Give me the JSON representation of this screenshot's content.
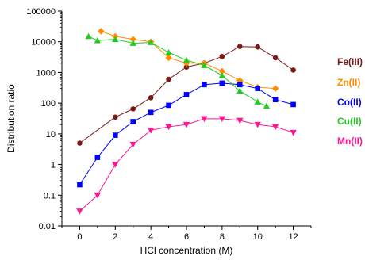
{
  "chart_data": {
    "type": "line",
    "title": "",
    "xlabel": "HCl concentration (M)",
    "ylabel": "Distribution ratio",
    "xlim": [
      -1,
      13
    ],
    "ylim": [
      0.01,
      100000
    ],
    "yscale": "log",
    "xticks": [
      0,
      2,
      4,
      6,
      8,
      10,
      12
    ],
    "yticks": [
      0.01,
      0.1,
      1,
      10,
      100,
      1000,
      10000,
      100000
    ],
    "ytick_labels": [
      "0.01",
      "0.1",
      "1",
      "10",
      "100",
      "1000",
      "10000",
      "100000"
    ],
    "grid": false,
    "legend": "right, beside series ends",
    "series": [
      {
        "name": "Fe(III)",
        "color": "#7b1a14",
        "marker": "circle",
        "points": [
          [
            0,
            5
          ],
          [
            2,
            35
          ],
          [
            3,
            65
          ],
          [
            4,
            150
          ],
          [
            5,
            600
          ],
          [
            6,
            1500
          ],
          [
            7,
            2000
          ],
          [
            8,
            3300
          ],
          [
            9,
            7000
          ],
          [
            10,
            6800
          ],
          [
            11,
            3000
          ],
          [
            12,
            1200
          ]
        ]
      },
      {
        "name": "Zn(II)",
        "color": "#ff8c00",
        "marker": "diamond",
        "points": [
          [
            1.2,
            22000
          ],
          [
            2,
            15000
          ],
          [
            3,
            12000
          ],
          [
            4,
            10000
          ],
          [
            5,
            3000
          ],
          [
            6,
            2000
          ],
          [
            7,
            2000
          ],
          [
            8,
            1100
          ],
          [
            9,
            550
          ],
          [
            10,
            330
          ],
          [
            11,
            300
          ]
        ]
      },
      {
        "name": "Co(II)",
        "color": "#0000ff",
        "marker": "square",
        "points": [
          [
            0,
            0.22
          ],
          [
            1,
            1.7
          ],
          [
            2,
            9
          ],
          [
            3,
            25
          ],
          [
            4,
            50
          ],
          [
            5,
            85
          ],
          [
            6,
            190
          ],
          [
            7,
            400
          ],
          [
            8,
            450
          ],
          [
            9,
            400
          ],
          [
            10,
            300
          ],
          [
            11,
            130
          ],
          [
            12,
            90
          ]
        ]
      },
      {
        "name": "Cu(II)",
        "color": "#22cc22",
        "marker": "triangle-up",
        "points": [
          [
            0.5,
            15000
          ],
          [
            1,
            11000
          ],
          [
            2,
            12000
          ],
          [
            3,
            9000
          ],
          [
            4,
            9500
          ],
          [
            5,
            4500
          ],
          [
            6,
            2500
          ],
          [
            7,
            1700
          ],
          [
            8,
            800
          ],
          [
            9,
            250
          ],
          [
            10,
            110
          ],
          [
            10.5,
            80
          ]
        ]
      },
      {
        "name": "Mn(II)",
        "color": "#ff1493",
        "marker": "triangle-down",
        "points": [
          [
            0,
            0.03
          ],
          [
            1,
            0.1
          ],
          [
            2,
            1
          ],
          [
            3,
            4.5
          ],
          [
            4,
            13
          ],
          [
            5,
            17
          ],
          [
            6,
            20
          ],
          [
            7,
            31
          ],
          [
            8,
            31
          ],
          [
            9,
            27
          ],
          [
            10,
            20
          ],
          [
            11,
            17
          ],
          [
            12,
            11
          ]
        ]
      }
    ]
  }
}
